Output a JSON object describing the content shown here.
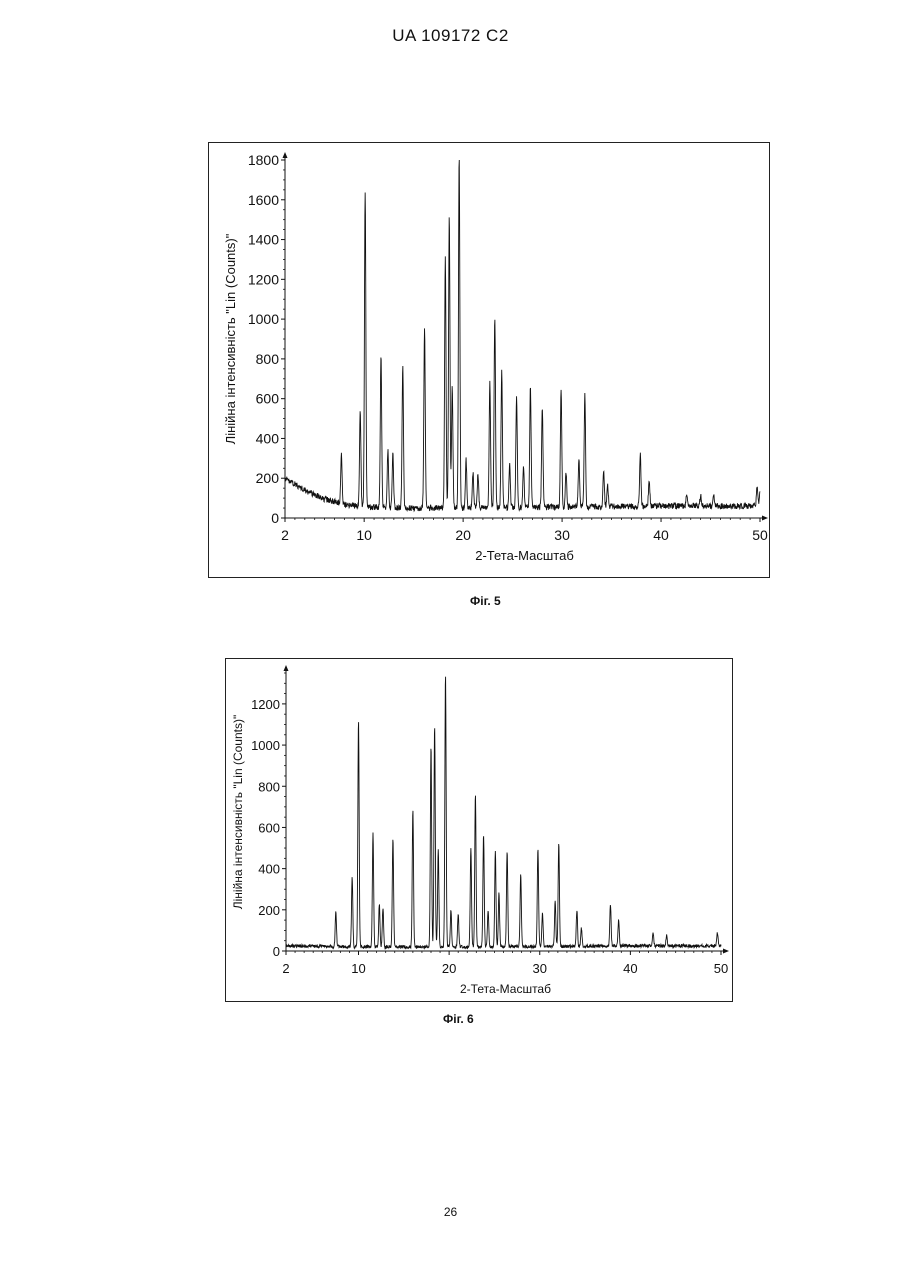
{
  "header": {
    "text": "UA   109172   C2"
  },
  "captions": {
    "fig5": "Фіг. 5",
    "fig6": "Фіг. 6"
  },
  "page_number": "26",
  "chart_data": [
    {
      "type": "line",
      "figure": "Фіг. 5",
      "xlabel": "2-Тета-Масштаб",
      "ylabel": "Лінійна інтенсивність \"Lin (Counts)\"",
      "xlim": [
        2,
        50
      ],
      "ylim": [
        0,
        1800
      ],
      "xticks": [
        2,
        10,
        20,
        30,
        40,
        50
      ],
      "yticks": [
        0,
        200,
        400,
        600,
        800,
        1000,
        1200,
        1400,
        1600,
        1800
      ],
      "baseline": [
        [
          2,
          200
        ],
        [
          4,
          140
        ],
        [
          6,
          95
        ],
        [
          8,
          70
        ],
        [
          10,
          55
        ],
        [
          15,
          50
        ],
        [
          20,
          50
        ],
        [
          30,
          55
        ],
        [
          40,
          60
        ],
        [
          50,
          60
        ]
      ],
      "peaks": [
        [
          7.7,
          330
        ],
        [
          9.6,
          540
        ],
        [
          10.1,
          1650
        ],
        [
          11.7,
          820
        ],
        [
          12.4,
          340
        ],
        [
          12.9,
          320
        ],
        [
          13.9,
          760
        ],
        [
          16.1,
          960
        ],
        [
          18.2,
          1320
        ],
        [
          18.6,
          1520
        ],
        [
          18.9,
          660
        ],
        [
          19.6,
          1820
        ],
        [
          20.3,
          290
        ],
        [
          21.0,
          230
        ],
        [
          21.5,
          220
        ],
        [
          22.7,
          680
        ],
        [
          23.2,
          1020
        ],
        [
          23.9,
          740
        ],
        [
          24.7,
          280
        ],
        [
          25.4,
          620
        ],
        [
          26.1,
          260
        ],
        [
          26.8,
          660
        ],
        [
          28.0,
          560
        ],
        [
          29.9,
          650
        ],
        [
          30.4,
          230
        ],
        [
          31.7,
          300
        ],
        [
          32.3,
          620
        ],
        [
          34.2,
          230
        ],
        [
          34.6,
          170
        ],
        [
          37.9,
          320
        ],
        [
          38.8,
          190
        ],
        [
          42.6,
          120
        ],
        [
          44.0,
          110
        ],
        [
          45.3,
          120
        ],
        [
          49.7,
          150
        ],
        [
          50.0,
          130
        ]
      ]
    },
    {
      "type": "line",
      "figure": "Фіг. 6",
      "xlabel": "2-Тета-Масштаб",
      "ylabel": "Лінійна інтенсивність \"Lin (Counts)\"",
      "xlim": [
        2,
        50
      ],
      "ylim": [
        0,
        1350
      ],
      "xticks": [
        2,
        10,
        20,
        30,
        40,
        50
      ],
      "yticks": [
        0,
        200,
        400,
        600,
        800,
        1000,
        1200
      ],
      "baseline": [
        [
          2,
          25
        ],
        [
          10,
          20
        ],
        [
          20,
          20
        ],
        [
          30,
          22
        ],
        [
          40,
          25
        ],
        [
          50,
          25
        ]
      ],
      "peaks": [
        [
          7.5,
          190
        ],
        [
          9.3,
          360
        ],
        [
          10.0,
          1130
        ],
        [
          11.6,
          570
        ],
        [
          12.3,
          230
        ],
        [
          12.7,
          210
        ],
        [
          13.8,
          550
        ],
        [
          16.0,
          680
        ],
        [
          18.0,
          1000
        ],
        [
          18.4,
          1100
        ],
        [
          18.8,
          490
        ],
        [
          19.6,
          1350
        ],
        [
          20.2,
          200
        ],
        [
          21.0,
          180
        ],
        [
          22.4,
          500
        ],
        [
          22.9,
          770
        ],
        [
          23.8,
          570
        ],
        [
          24.3,
          200
        ],
        [
          25.1,
          480
        ],
        [
          25.5,
          280
        ],
        [
          26.4,
          490
        ],
        [
          27.9,
          370
        ],
        [
          29.8,
          500
        ],
        [
          30.3,
          180
        ],
        [
          31.7,
          240
        ],
        [
          32.1,
          530
        ],
        [
          34.1,
          200
        ],
        [
          34.6,
          110
        ],
        [
          37.8,
          230
        ],
        [
          38.7,
          150
        ],
        [
          42.5,
          90
        ],
        [
          44.0,
          80
        ],
        [
          49.6,
          90
        ]
      ]
    }
  ]
}
